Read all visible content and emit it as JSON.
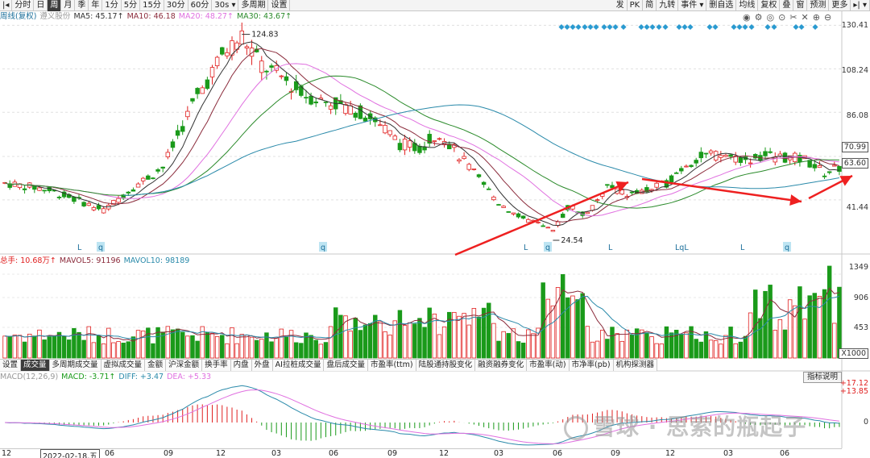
{
  "toolbar": {
    "left_items": [
      "分时",
      "日",
      "周",
      "月",
      "季",
      "年",
      "1分",
      "5分",
      "15分",
      "30分",
      "60分",
      "30s",
      "多周期",
      "设置"
    ],
    "active": "周",
    "right_items": [
      "发",
      "PK",
      "简",
      "九转",
      "事件",
      "删自选",
      "均线",
      "复权",
      "叠",
      "窗",
      "预测",
      "更多"
    ]
  },
  "kline_info": {
    "label": "周线(复权)",
    "stock": "遵义股份",
    "ma5": "MA5: 45.17↑",
    "ma10": "MA10: 46.18",
    "ma20": "MA20: 48.27↑",
    "ma30": "MA30: 43.67↑"
  },
  "price_axis": [
    "130.41",
    "108.24",
    "86.08",
    "70.99",
    "63.60",
    "41.44"
  ],
  "price_markers": {
    "high": "124.83",
    "low": "24.54"
  },
  "event_markers": [
    "L",
    "q",
    "q",
    "L",
    "q",
    "L",
    "LqL",
    "L",
    "q"
  ],
  "vol_info": {
    "label": "总手: 10.68万↑",
    "mavol5": "MAVOL5: 91196",
    "mavol10": "MAVOL10: 98189"
  },
  "vol_axis": [
    "1349",
    "906",
    "453",
    "X1000"
  ],
  "tabs": [
    "设置",
    "成交量",
    "多周期成交量",
    "虚拟成交量",
    "金额",
    "沪深金额",
    "换手率",
    "内盘",
    "外盘",
    "AI拉桩成交量",
    "盘后成交量",
    "市盈率(ttm)",
    "陆股通持股变化",
    "融资融券变化",
    "市盈率(动)",
    "市净率(pb)",
    "机构探测器"
  ],
  "active_tab": "成交量",
  "macd_info": {
    "label": "MACD(12,26,9)",
    "macd": "MACD: -3.71↑",
    "diff": "DIFF: +3.47",
    "dea": "DEA: +5.33"
  },
  "macd_axis": [
    "+17.12",
    "+13.85",
    "0"
  ],
  "explain_button": "指标说明",
  "x_axis": [
    "12",
    "2022-02-18,五",
    "06",
    "09",
    "12",
    "03",
    "06",
    "09",
    "12",
    "03",
    "06",
    "09",
    "12",
    "03",
    "06"
  ],
  "watermark": "雪球 · 思索的瓶起子",
  "colors": {
    "up": "#e02020",
    "down": "#1a9a1a",
    "ma5": "#333333",
    "ma10": "#8b2b3b",
    "ma20": "#e070e0",
    "ma30": "#2a8a2a",
    "ma60": "#2a8aaa",
    "arrow": "#ee2020"
  }
}
